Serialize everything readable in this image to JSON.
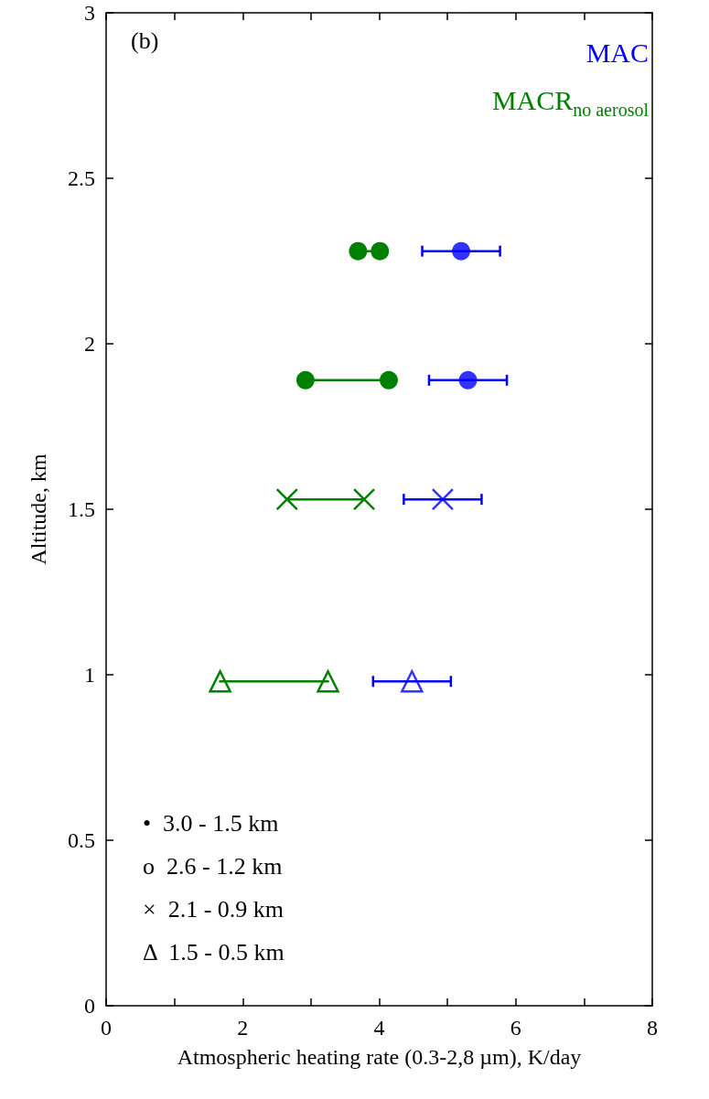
{
  "chart_data": {
    "type": "scatter",
    "title": "(b)",
    "xlabel": "Atmospheric heating rate (0.3-2,8 µm), K/day",
    "ylabel": "Altitude, km",
    "xlim": [
      0,
      8
    ],
    "xticks": [
      0,
      {
        "value": 1,
        "label": null
      },
      2,
      {
        "value": 3,
        "label": null
      },
      4,
      {
        "value": 5,
        "label": null
      },
      6,
      {
        "value": 7,
        "label": null
      },
      8
    ],
    "ylim": [
      0,
      3
    ],
    "yticks": [
      0,
      0.5,
      1,
      1.5,
      2,
      2.5,
      3
    ],
    "grid": false,
    "series": [
      {
        "name": "MACR$_{no aerosol}$",
        "type": "line",
        "color": "#008000",
        "marker": "circle",
        "x": [
          3.69,
          4.01
        ],
        "values": [
          2.28,
          2.28
        ]
      },
      {
        "type": "line",
        "color": "#008000",
        "marker": "circle",
        "x": [
          2.92,
          4.14
        ],
        "values": [
          1.89,
          1.89
        ]
      },
      {
        "type": "line",
        "color": "#008000",
        "marker": "cross",
        "x": [
          2.65,
          3.78
        ],
        "values": [
          1.53,
          1.53
        ]
      },
      {
        "type": "line",
        "color": "#008000",
        "marker": "triangle",
        "x": [
          1.67,
          3.25
        ],
        "values": [
          0.98,
          0.98
        ]
      },
      {
        "name": "MAC",
        "color": "#0000ff",
        "marker": "circle",
        "x": [
          5.2
        ],
        "values": [
          2.28
        ],
        "xerrors": [
          0.57
        ]
      },
      {
        "color": "#0000ff",
        "marker": "circle",
        "x": [
          5.3
        ],
        "values": [
          1.89
        ],
        "xerrors": [
          0.57
        ]
      },
      {
        "color": "#0000ff",
        "marker": "cross",
        "x": [
          4.93
        ],
        "values": [
          1.53
        ],
        "xerrors": [
          0.57
        ]
      },
      {
        "color": "#0000ff",
        "marker": "triangle",
        "x": [
          4.48
        ],
        "values": [
          0.98
        ],
        "xerrors": [
          0.57
        ]
      }
    ],
    "annotations": [
      "•  3.0 - 1.5 km",
      "o  2.6 - 1.2 km",
      "×  2.1 - 0.9 km",
      "Δ  1.5 - 0.5 km"
    ]
  }
}
